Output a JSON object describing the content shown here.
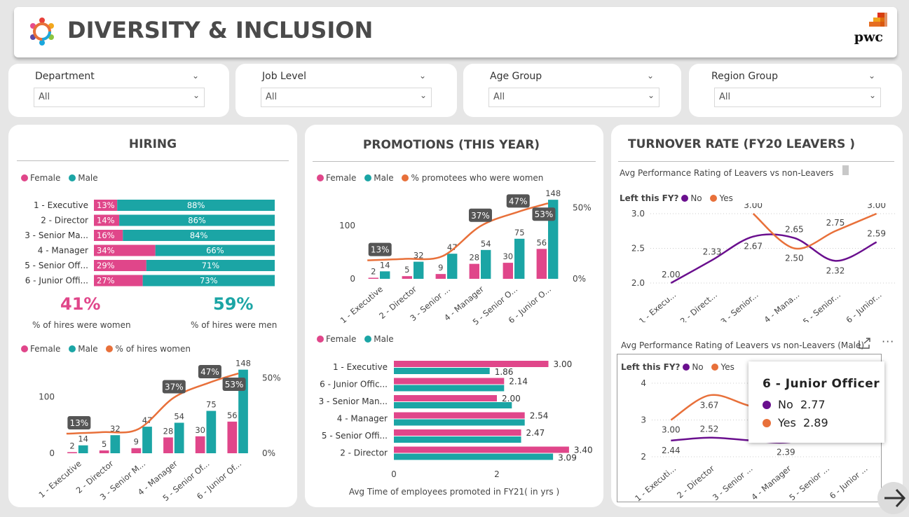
{
  "header": {
    "title": "DIVERSITY & INCLUSION",
    "logo_text": "pwc"
  },
  "filters": [
    {
      "label": "Department",
      "value": "All"
    },
    {
      "label": "Job Level",
      "value": "All"
    },
    {
      "label": "Age Group",
      "value": "All"
    },
    {
      "label": "Region Group",
      "value": "All"
    }
  ],
  "hiring": {
    "title": "HIRING",
    "legend": [
      "Female",
      "Male"
    ],
    "stacked": {
      "categories": [
        "1 - Executive",
        "2 - Director",
        "3 - Senior Ma...",
        "4 - Manager",
        "5 - Senior Off...",
        "6 - Junior Offi..."
      ],
      "female_pct": [
        "13%",
        "14%",
        "16%",
        "34%",
        "29%",
        "27%"
      ],
      "male_pct": [
        "88%",
        "86%",
        "84%",
        "66%",
        "71%",
        "73%"
      ]
    },
    "kpi_women": {
      "value": "41%",
      "label": "% of hires were women"
    },
    "kpi_men": {
      "value": "59%",
      "label": "% of hires were men"
    },
    "combo_legend": [
      "Female",
      "Male",
      "% of hires women"
    ]
  },
  "promotions": {
    "title": "PROMOTIONS (THIS YEAR)",
    "combo_legend": [
      "Female",
      "Male",
      "% promotees who were women"
    ],
    "bars_legend": [
      "Female",
      "Male"
    ],
    "bars_xlabel": "Avg Time of employees promoted in FY21( in yrs )"
  },
  "turnover": {
    "title": "TURNOVER RATE (FY20 LEAVERS )",
    "sub1": "Avg Performance Rating of Leavers vs non-Leavers",
    "sub2": "Avg Performance Rating of Leavers vs non-Leavers (Male)",
    "legend_title": "Left this FY?",
    "legend": [
      "No",
      "Yes"
    ]
  },
  "tooltip": {
    "title": "6 - Junior Officer",
    "no_label": "No",
    "no_value": "2.77",
    "yes_label": "Yes",
    "yes_value": "2.89"
  },
  "colors": {
    "female": "#e0468a",
    "male": "#1ba5a5",
    "line": "#e8703a",
    "no": "#6a0f8e",
    "yes": "#e8703a"
  },
  "chart_data": [
    {
      "type": "bar",
      "name": "hiring_stacked",
      "categories": [
        "1 - Executive",
        "2 - Director",
        "3 - Senior Ma...",
        "4 - Manager",
        "5 - Senior Off...",
        "6 - Junior Offi..."
      ],
      "series": [
        {
          "name": "Female",
          "values": [
            13,
            14,
            16,
            34,
            29,
            27
          ]
        },
        {
          "name": "Male",
          "values": [
            88,
            86,
            84,
            66,
            71,
            73
          ]
        }
      ]
    },
    {
      "type": "bar",
      "name": "hiring_combo",
      "categories": [
        "1 - Executive",
        "2 - Director",
        "3 - Senior M...",
        "4 - Manager",
        "5 - Senior Of...",
        "6 - Junior Of..."
      ],
      "series": [
        {
          "name": "Female",
          "values": [
            2,
            5,
            9,
            28,
            30,
            56
          ]
        },
        {
          "name": "Male",
          "values": [
            14,
            32,
            47,
            54,
            75,
            148
          ]
        },
        {
          "name": "% of hires women",
          "values": [
            13,
            14,
            16,
            37,
            47,
            53
          ]
        }
      ],
      "yticks": [
        "0",
        "100"
      ],
      "y2ticks": [
        "0%",
        "50%"
      ],
      "ylim": [
        0,
        160
      ],
      "y2lim": [
        0,
        60
      ],
      "line_labels": [
        "13%",
        "",
        "",
        "37%",
        "47%",
        "53%"
      ]
    },
    {
      "type": "bar",
      "name": "promotions_combo",
      "categories": [
        "1 - Executive",
        "2 - Director",
        "3 - Senior ...",
        "4 - Manager",
        "5 - Senior O...",
        "6 - Junior O..."
      ],
      "series": [
        {
          "name": "Female",
          "values": [
            2,
            5,
            9,
            28,
            30,
            56
          ]
        },
        {
          "name": "Male",
          "values": [
            14,
            32,
            47,
            54,
            75,
            148
          ]
        },
        {
          "name": "% promotees who were women",
          "values": [
            13,
            14,
            16,
            37,
            47,
            53
          ]
        }
      ],
      "yticks": [
        "0",
        "100"
      ],
      "y2ticks": [
        "0%",
        "50%"
      ],
      "ylim": [
        0,
        160
      ],
      "y2lim": [
        0,
        60
      ],
      "line_labels": [
        "13%",
        "",
        "",
        "37%",
        "47%",
        "53%"
      ]
    },
    {
      "type": "bar",
      "name": "promotion_time",
      "categories": [
        "1 - Executive",
        "6 - Junior Offic...",
        "3 - Senior Man...",
        "4 - Manager",
        "5 - Senior Offi...",
        "2 - Director"
      ],
      "series": [
        {
          "name": "Female",
          "values": [
            3.0,
            2.14,
            2.0,
            2.54,
            2.47,
            3.4
          ]
        },
        {
          "name": "Male",
          "values": [
            1.86,
            2.14,
            2.29,
            2.54,
            2.47,
            3.09
          ]
        }
      ],
      "labels_female": [
        "3.00",
        "2.14",
        "2.00",
        "2.54",
        "2.47",
        "3.40"
      ],
      "labels_male": [
        "1.86",
        "",
        "",
        "",
        "",
        "3.09"
      ],
      "xticks": [
        "0",
        "2"
      ],
      "xlim": [
        0,
        3.6
      ],
      "xlabel": "Avg Time of employees promoted in FY21( in yrs )"
    },
    {
      "type": "line",
      "name": "turnover_all",
      "categories": [
        "1 - Execu...",
        "2 - Direct...",
        "3 - Senior...",
        "4 - Mana...",
        "5 - Senior...",
        "6 - Junior..."
      ],
      "series": [
        {
          "name": "No",
          "values": [
            2.0,
            2.33,
            2.67,
            2.65,
            2.32,
            2.59
          ]
        },
        {
          "name": "Yes",
          "values": [
            null,
            null,
            3.0,
            2.5,
            2.75,
            3.0
          ]
        }
      ],
      "labels_no": [
        "2.00",
        "2.33",
        "2.67",
        "2.65",
        "2.32",
        "2.59"
      ],
      "labels_yes": [
        "",
        "",
        "3.00",
        "2.50",
        "2.75",
        "3.00"
      ],
      "yticks": [
        "2.0",
        "2.5",
        "3.0"
      ],
      "ylim": [
        2.0,
        3.0
      ]
    },
    {
      "type": "line",
      "name": "turnover_male",
      "categories": [
        "1 - Executi...",
        "2 - Director",
        "3 - Senior ...",
        "4 - Manager",
        "5 - Senior ...",
        "6 - Junior ..."
      ],
      "series": [
        {
          "name": "No",
          "values": [
            2.44,
            2.52,
            2.45,
            2.39,
            2.6,
            2.77
          ]
        },
        {
          "name": "Yes",
          "values": [
            3.0,
            3.67,
            3.4,
            3.1,
            3.0,
            2.89
          ]
        }
      ],
      "labels_no": [
        "2.44",
        "2.52",
        "",
        "2.39",
        "",
        ""
      ],
      "labels_yes": [
        "3.00",
        "3.67",
        "",
        "",
        "",
        ""
      ],
      "yticks": [
        "2",
        "3",
        "4"
      ],
      "ylim": [
        2,
        4
      ]
    }
  ]
}
